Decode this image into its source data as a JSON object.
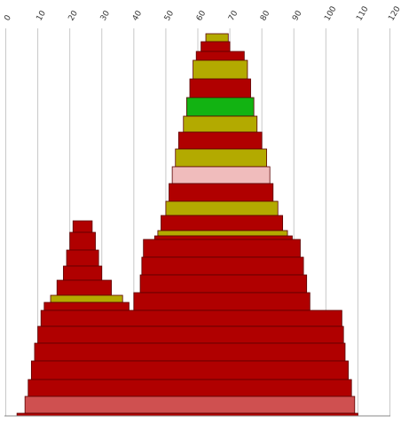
{
  "chart_data": {
    "type": "area",
    "xlim": [
      0,
      120
    ],
    "x_ticks": [
      0,
      10,
      20,
      30,
      40,
      50,
      60,
      70,
      80,
      90,
      100,
      110,
      120
    ],
    "grid": "vertical",
    "legend": "none",
    "ylim": [
      0,
      477
    ],
    "colors": {
      "red": "#b00000",
      "olive": "#b3aa00",
      "green": "#12b312",
      "pink": "#f0bcbc",
      "salmon": "#cf5050"
    },
    "bands": [
      {
        "y_top": 38,
        "y_bot": 47,
        "x_left": 62.5,
        "x_right": 69.5,
        "color": "olive"
      },
      {
        "y_top": 47,
        "y_bot": 58,
        "x_left": 61.0,
        "x_right": 70.0,
        "color": "red"
      },
      {
        "y_top": 58,
        "y_bot": 68,
        "x_left": 59.5,
        "x_right": 74.5,
        "color": "red"
      },
      {
        "y_top": 68,
        "y_bot": 89,
        "x_left": 58.5,
        "x_right": 75.5,
        "color": "olive"
      },
      {
        "y_top": 89,
        "y_bot": 110,
        "x_left": 57.5,
        "x_right": 76.5,
        "color": "red"
      },
      {
        "y_top": 110,
        "y_bot": 131,
        "x_left": 56.5,
        "x_right": 77.5,
        "color": "green"
      },
      {
        "y_top": 131,
        "y_bot": 149,
        "x_left": 55.5,
        "x_right": 78.5,
        "color": "olive"
      },
      {
        "y_top": 149,
        "y_bot": 168,
        "x_left": 54.0,
        "x_right": 80.0,
        "color": "red"
      },
      {
        "y_top": 168,
        "y_bot": 188,
        "x_left": 53.0,
        "x_right": 81.5,
        "color": "olive"
      },
      {
        "y_top": 188,
        "y_bot": 207,
        "x_left": 52.0,
        "x_right": 82.5,
        "color": "pink"
      },
      {
        "y_top": 207,
        "y_bot": 227,
        "x_left": 51.0,
        "x_right": 83.5,
        "color": "red"
      },
      {
        "y_top": 227,
        "y_bot": 243,
        "x_left": 50.0,
        "x_right": 85.0,
        "color": "olive"
      },
      {
        "y_top": 243,
        "y_bot": 260,
        "x_left": 48.5,
        "x_right": 86.5,
        "color": "red"
      },
      {
        "y_top": 260,
        "y_bot": 266,
        "x_left": 47.5,
        "x_right": 88.0,
        "color": "olive"
      },
      {
        "y_top": 266,
        "y_bot": 272,
        "x_left": 46.5,
        "x_right": 89.5,
        "color": "red"
      },
      {
        "y_top": 249,
        "y_bot": 262,
        "x_left": 21.0,
        "x_right": 27.0,
        "color": "red"
      },
      {
        "y_top": 262,
        "y_bot": 282,
        "x_left": 20.0,
        "x_right": 28.0,
        "color": "red"
      },
      {
        "y_top": 282,
        "y_bot": 300,
        "x_left": 19.0,
        "x_right": 29.0,
        "color": "red"
      },
      {
        "y_top": 300,
        "y_bot": 316,
        "x_left": 18.0,
        "x_right": 30.0,
        "color": "red"
      },
      {
        "y_top": 316,
        "y_bot": 333,
        "x_left": 16.0,
        "x_right": 33.0,
        "color": "red"
      },
      {
        "y_top": 333,
        "y_bot": 341,
        "x_left": 14.0,
        "x_right": 36.5,
        "color": "olive"
      },
      {
        "y_top": 341,
        "y_bot": 350,
        "x_left": 12.0,
        "x_right": 38.5,
        "color": "red"
      },
      {
        "y_top": 270,
        "y_bot": 290,
        "x_left": 43.0,
        "x_right": 92.0,
        "color": "red"
      },
      {
        "y_top": 290,
        "y_bot": 310,
        "x_left": 42.5,
        "x_right": 93.0,
        "color": "red"
      },
      {
        "y_top": 310,
        "y_bot": 330,
        "x_left": 42.0,
        "x_right": 94.0,
        "color": "red"
      },
      {
        "y_top": 330,
        "y_bot": 350,
        "x_left": 40.0,
        "x_right": 95.0,
        "color": "red"
      },
      {
        "y_top": 350,
        "y_bot": 368,
        "x_left": 11.0,
        "x_right": 105.0,
        "color": "red"
      },
      {
        "y_top": 368,
        "y_bot": 387,
        "x_left": 10.0,
        "x_right": 105.5,
        "color": "red"
      },
      {
        "y_top": 387,
        "y_bot": 407,
        "x_left": 9.0,
        "x_right": 106.0,
        "color": "red"
      },
      {
        "y_top": 407,
        "y_bot": 428,
        "x_left": 8.0,
        "x_right": 107.0,
        "color": "red"
      },
      {
        "y_top": 428,
        "y_bot": 447,
        "x_left": 7.0,
        "x_right": 108.0,
        "color": "red"
      },
      {
        "y_top": 447,
        "y_bot": 466,
        "x_left": 6.0,
        "x_right": 109.0,
        "color": "salmon"
      },
      {
        "y_top": 466,
        "y_bot": 469,
        "x_left": 3.5,
        "x_right": 110.0,
        "color": "red"
      }
    ]
  }
}
